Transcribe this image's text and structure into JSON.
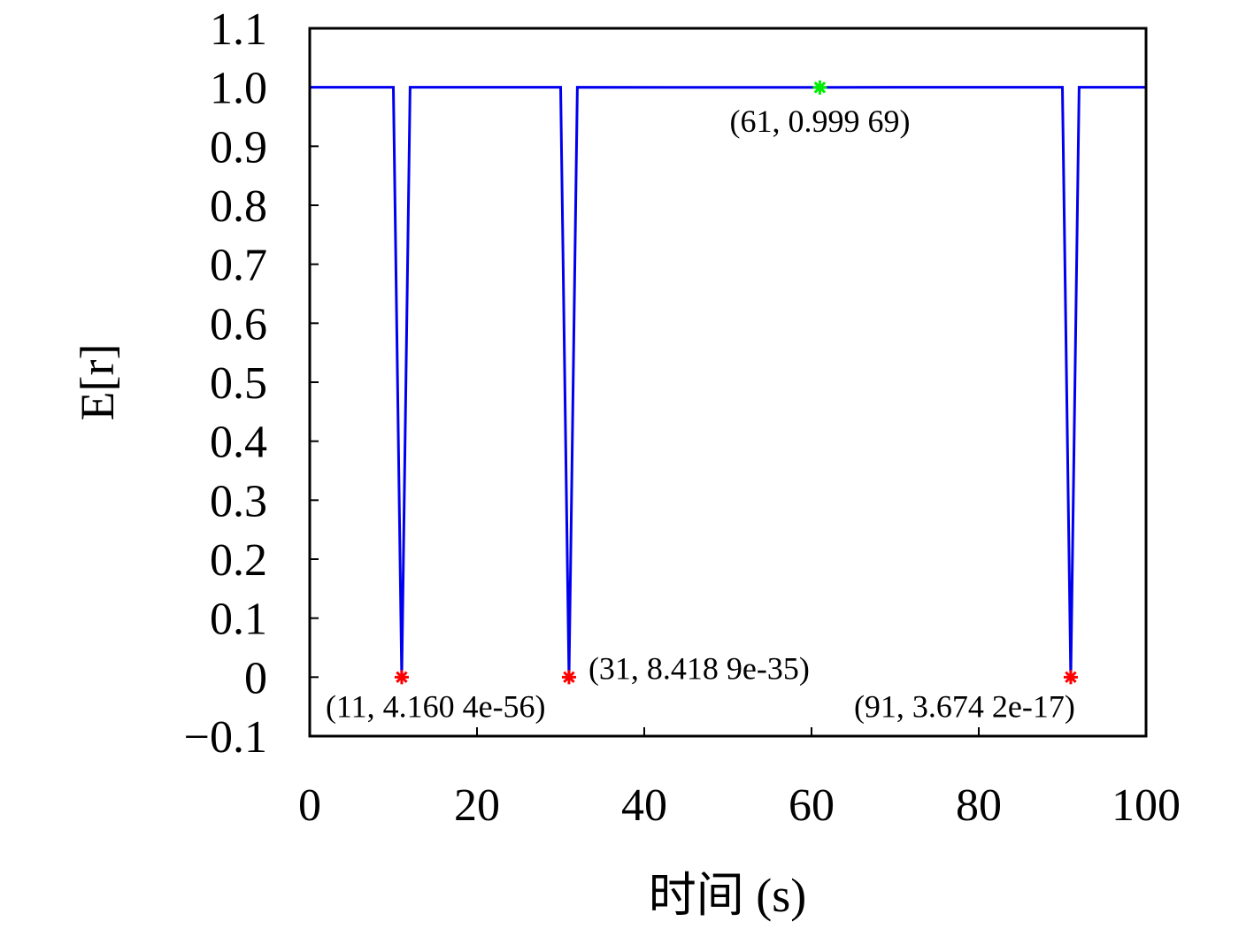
{
  "chart_data": {
    "type": "line",
    "xlabel": "时间 (s)",
    "ylabel": "E[r]",
    "x": [
      0,
      10,
      11,
      12,
      30,
      31,
      32,
      45,
      50,
      55,
      60,
      61,
      62,
      70,
      90,
      91,
      92,
      100
    ],
    "series": [
      {
        "name": "E[r]",
        "color": "#0000ee",
        "values": [
          1,
          1,
          4.1604e-56,
          1,
          1,
          8.4189e-35,
          1,
          0.9999,
          0.9998,
          0.9999,
          0.9998,
          0.99969,
          0.9999,
          1,
          1,
          3.6742e-17,
          1,
          1
        ]
      }
    ],
    "annotations": [
      {
        "x": 11,
        "y": 4.1604e-56,
        "label": "(11, 4.160 4e-56)",
        "color": "#ff0000"
      },
      {
        "x": 31,
        "y": 8.4189e-35,
        "label": "(31, 8.418 9e-35)",
        "color": "#ff0000"
      },
      {
        "x": 61,
        "y": 0.99969,
        "label": "(61, 0.999 69)",
        "color": "#00ee00"
      },
      {
        "x": 91,
        "y": 3.6742e-17,
        "label": "(91, 3.674 2e-17)",
        "color": "#ff0000"
      }
    ],
    "xlim": [
      0,
      100
    ],
    "xticks": [
      0,
      20,
      40,
      60,
      80,
      100
    ],
    "ylim": [
      -0.1,
      1.1
    ],
    "yticks": [
      {
        "value": -0.1,
        "label": "−0.1"
      },
      0,
      0.1,
      0.2,
      0.3,
      0.4,
      0.5,
      0.6,
      0.7,
      0.8,
      0.9,
      {
        "value": 1.0,
        "label": "1.0"
      },
      1.1
    ]
  }
}
